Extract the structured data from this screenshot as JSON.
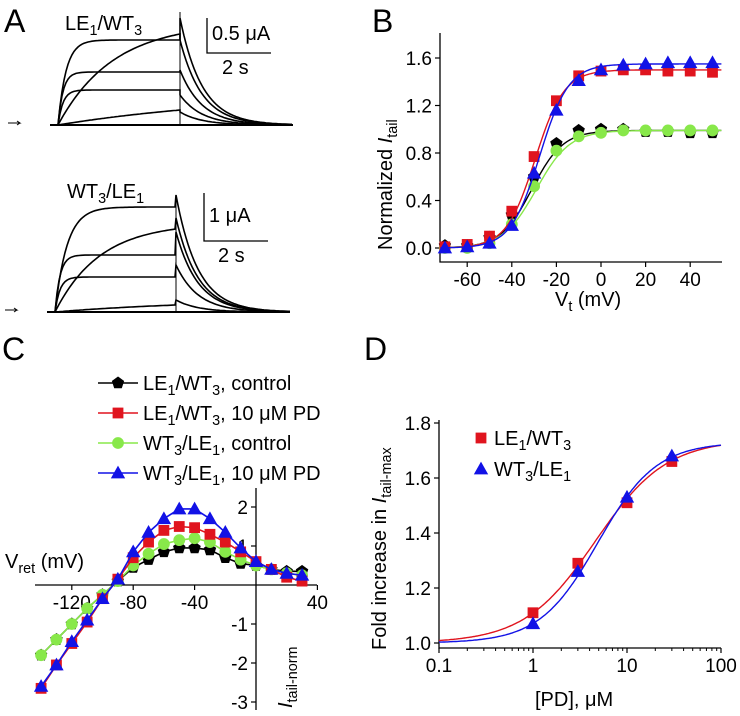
{
  "panel_labels": {
    "a": "A",
    "b": "B",
    "c": "C",
    "d": "D"
  },
  "colors": {
    "LE1/WT3 control": "#000000",
    "LE1/WT3 PD": "#e0141e",
    "WT3/LE1 control": "#88e84a",
    "WT3/LE1 PD": "#1212e6"
  },
  "panel_a": {
    "top": {
      "title": [
        [
          "LE",
          ""
        ],
        [
          "1",
          "sub"
        ],
        [
          "/WT",
          ""
        ],
        [
          "3",
          "sub"
        ]
      ],
      "scale_current": "0.5 μA",
      "scale_time": "2 s"
    },
    "bottom": {
      "title": [
        [
          "WT",
          ""
        ],
        [
          "3",
          "sub"
        ],
        [
          "/LE",
          ""
        ],
        [
          "1",
          "sub"
        ]
      ],
      "scale_current": "1 μA",
      "scale_time": "2 s"
    }
  },
  "chart_data": [
    {
      "panel": "B",
      "type": "scatter",
      "xlabel": [
        [
          "V",
          ""
        ],
        [
          "t",
          "sub"
        ],
        [
          " (mV)",
          ""
        ]
      ],
      "ylabel": [
        [
          "Normalized ",
          ""
        ],
        [
          "I",
          "it"
        ],
        [
          "tail",
          "sub"
        ]
      ],
      "xlim": [
        -72,
        54
      ],
      "ylim": [
        -0.12,
        1.77
      ],
      "xticks": [
        "-60",
        "-40",
        "-20",
        "0",
        "20",
        "40"
      ],
      "xtick_values": [
        -60,
        -40,
        -20,
        0,
        20,
        40
      ],
      "yticks": [
        "0.0",
        "0.4",
        "0.8",
        "1.2",
        "1.6"
      ],
      "ytick_values": [
        0,
        0.4,
        0.8,
        1.2,
        1.6
      ],
      "x": [
        -70,
        -60,
        -50,
        -40,
        -30,
        -20,
        -10,
        0,
        10,
        20,
        30,
        40,
        50
      ],
      "series": [
        {
          "key": "LE1/WT3 control",
          "marker": "pentagon",
          "values": [
            0.02,
            0.02,
            0.09,
            0.28,
            0.6,
            0.88,
            0.99,
            1.0,
            1.0,
            0.98,
            0.98,
            0.97,
            0.97
          ]
        },
        {
          "key": "WT3/LE1 control",
          "marker": "circle",
          "values": [
            0.0,
            0.0,
            0.04,
            0.2,
            0.52,
            0.82,
            0.94,
            0.97,
            0.99,
            0.99,
            0.99,
            0.99,
            0.99
          ]
        },
        {
          "key": "LE1/WT3 PD",
          "marker": "square",
          "values": [
            0.01,
            0.03,
            0.1,
            0.31,
            0.77,
            1.24,
            1.45,
            1.49,
            1.5,
            1.5,
            1.49,
            1.49,
            1.48
          ]
        },
        {
          "key": "WT3/LE1 PD",
          "marker": "triangle",
          "values": [
            0.0,
            0.01,
            0.04,
            0.19,
            0.63,
            1.16,
            1.41,
            1.5,
            1.54,
            1.55,
            1.56,
            1.56,
            1.56
          ]
        }
      ]
    },
    {
      "panel": "C",
      "type": "line",
      "xlabel": [
        [
          "V",
          ""
        ],
        [
          "ret",
          "sub"
        ],
        [
          " (mV)",
          ""
        ]
      ],
      "ylabel": [
        [
          "I",
          "it"
        ],
        [
          "tail-norm",
          "sub"
        ]
      ],
      "xlim": [
        -144,
        40
      ],
      "ylim": [
        -3.2,
        2.5
      ],
      "xticks": [
        "-120",
        "-80",
        "-40",
        "40"
      ],
      "xtick_values": [
        -120,
        -80,
        -40,
        40
      ],
      "yticks": [
        "2",
        "1",
        "-1",
        "-2",
        "-3"
      ],
      "ytick_values": [
        2,
        1,
        -1,
        -2,
        -3
      ],
      "legend": [
        {
          "key": "LE1/WT3 control",
          "marker": "pentagon",
          "label": [
            [
              "LE",
              ""
            ],
            [
              "1",
              "sub"
            ],
            [
              "/WT",
              ""
            ],
            [
              "3",
              "sub"
            ],
            [
              ", control",
              ""
            ]
          ]
        },
        {
          "key": "LE1/WT3 PD",
          "marker": "square",
          "label": [
            [
              "LE",
              ""
            ],
            [
              "1",
              "sub"
            ],
            [
              "/WT",
              ""
            ],
            [
              "3",
              "sub"
            ],
            [
              ", 10 μM PD",
              ""
            ]
          ]
        },
        {
          "key": "WT3/LE1 control",
          "marker": "circle",
          "label": [
            [
              "WT",
              ""
            ],
            [
              "3",
              "sub"
            ],
            [
              "/LE",
              ""
            ],
            [
              "1",
              "sub"
            ],
            [
              ", control",
              ""
            ]
          ]
        },
        {
          "key": "WT3/LE1 PD",
          "marker": "triangle",
          "label": [
            [
              "WT",
              ""
            ],
            [
              "3",
              "sub"
            ],
            [
              "/LE",
              ""
            ],
            [
              "1",
              "sub"
            ],
            [
              ", 10 μM PD",
              ""
            ]
          ]
        }
      ],
      "x": [
        -140,
        -130,
        -120,
        -110,
        -100,
        -90,
        -80,
        -70,
        -60,
        -50,
        -40,
        -30,
        -20,
        -10,
        0,
        10,
        20,
        30
      ],
      "series": [
        {
          "key": "LE1/WT3 control",
          "marker": "pentagon",
          "values": [
            -1.8,
            -1.4,
            -1.0,
            -0.6,
            -0.25,
            0.1,
            0.45,
            0.65,
            0.85,
            0.95,
            0.95,
            0.9,
            0.7,
            0.55,
            0.5,
            0.4,
            0.35,
            0.35
          ]
        },
        {
          "key": "WT3/LE1 control",
          "marker": "circle",
          "values": [
            -1.8,
            -1.4,
            -1.0,
            -0.6,
            -0.25,
            0.1,
            0.5,
            0.8,
            1.05,
            1.15,
            1.2,
            1.1,
            0.85,
            0.65,
            0.5,
            0.4,
            0.3,
            0.25
          ]
        },
        {
          "key": "LE1/WT3 PD",
          "marker": "square",
          "values": [
            -2.65,
            -2.05,
            -1.5,
            -0.95,
            -0.35,
            0.15,
            0.7,
            1.1,
            1.4,
            1.5,
            1.47,
            1.3,
            1.1,
            0.85,
            0.6,
            0.4,
            0.2,
            0.1
          ]
        },
        {
          "key": "WT3/LE1 PD",
          "marker": "triangle",
          "values": [
            -2.6,
            -2.05,
            -1.45,
            -0.9,
            -0.35,
            0.15,
            0.85,
            1.35,
            1.7,
            1.95,
            1.95,
            1.7,
            1.35,
            0.95,
            0.6,
            0.4,
            0.3,
            0.25
          ]
        }
      ]
    },
    {
      "panel": "D",
      "type": "scatter",
      "xscale": "log",
      "xlabel": [
        [
          "[PD], μM",
          ""
        ]
      ],
      "ylabel": [
        [
          "Fold increase in ",
          ""
        ],
        [
          "I",
          "it"
        ],
        [
          "tail-max",
          "sub"
        ]
      ],
      "xlim": [
        0.1,
        100
      ],
      "ylim": [
        0.98,
        1.8
      ],
      "xticks": [
        "0.1",
        "1",
        "10",
        "100"
      ],
      "xtick_values": [
        0.1,
        1,
        10,
        100
      ],
      "yticks": [
        "1.0",
        "1.2",
        "1.4",
        "1.6",
        "1.8"
      ],
      "ytick_values": [
        1.0,
        1.2,
        1.4,
        1.6,
        1.8
      ],
      "legend": [
        {
          "key": "LE1/WT3 PD",
          "marker": "square",
          "label": [
            [
              "LE",
              ""
            ],
            [
              "1",
              "sub"
            ],
            [
              "/WT",
              ""
            ],
            [
              "3",
              "sub"
            ]
          ]
        },
        {
          "key": "WT3/LE1 PD",
          "marker": "triangle",
          "label": [
            [
              "WT",
              ""
            ],
            [
              "3",
              "sub"
            ],
            [
              "/LE",
              ""
            ],
            [
              "1",
              "sub"
            ]
          ]
        }
      ],
      "x": [
        1,
        3,
        10,
        30
      ],
      "series": [
        {
          "key": "LE1/WT3 PD",
          "marker": "square",
          "values": [
            1.11,
            1.29,
            1.51,
            1.66
          ]
        },
        {
          "key": "WT3/LE1 PD",
          "marker": "triangle",
          "values": [
            1.07,
            1.26,
            1.53,
            1.68
          ]
        }
      ]
    }
  ]
}
